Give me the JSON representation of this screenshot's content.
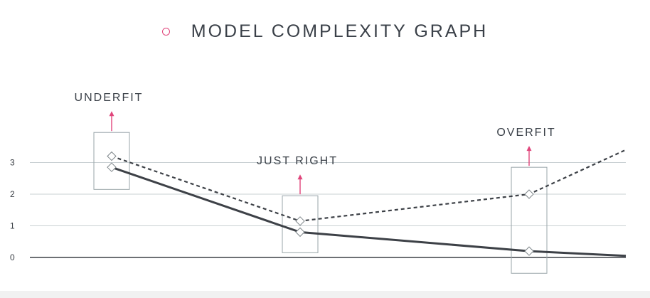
{
  "title": "MODEL COMPLEXITY GRAPH",
  "colors": {
    "accent": "#e0457b",
    "line": "#3d4147",
    "grid": "#c9d0d3",
    "box": "#9aa6aa"
  },
  "chart_data": {
    "type": "line",
    "x": [
      0,
      1,
      2,
      3
    ],
    "ylim": [
      0,
      3.5
    ],
    "yticks": [
      0,
      1,
      2,
      3
    ],
    "grid": true,
    "series": [
      {
        "style": "solid",
        "values": [
          2.85,
          0.8,
          0.2,
          0.05
        ],
        "markers": [
          0,
          1,
          2
        ]
      },
      {
        "style": "dashed",
        "values": [
          3.2,
          1.15,
          2.0,
          3.4
        ],
        "markers": [
          0,
          1,
          2
        ]
      }
    ],
    "annotations": [
      {
        "label": "UNDERFIT",
        "x": 0,
        "box_y": [
          2.15,
          3.95
        ]
      },
      {
        "label": "JUST RIGHT",
        "x": 1,
        "box_y": [
          0.15,
          1.95
        ]
      },
      {
        "label": "OVERFIT",
        "x": 2,
        "box_y": [
          -0.5,
          2.85
        ]
      }
    ]
  }
}
